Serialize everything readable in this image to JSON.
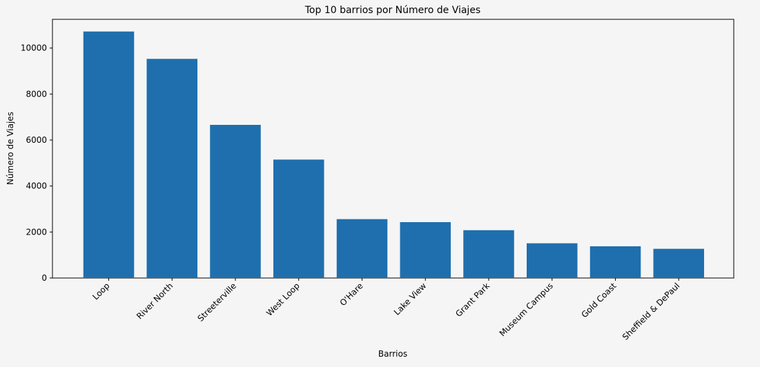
{
  "chart_data": {
    "type": "bar",
    "title": "Top 10 barrios por Número de Viajes",
    "xlabel": "Barrios",
    "ylabel": "Número de Viajes",
    "categories": [
      "Loop",
      "River North",
      "Streeterville",
      "West Loop",
      "O'Hare",
      "Lake View",
      "Grant Park",
      "Museum Campus",
      "Gold Coast",
      "Sheffield & DePaul"
    ],
    "values": [
      10720,
      9530,
      6660,
      5150,
      2560,
      2430,
      2080,
      1510,
      1380,
      1270
    ],
    "ylim": [
      0,
      11250
    ],
    "yticks": [
      0,
      2000,
      4000,
      6000,
      8000,
      10000
    ],
    "ytick_labels": [
      "0",
      "2000",
      "4000",
      "6000",
      "8000",
      "10000"
    ],
    "grid": false,
    "legend": "none",
    "bar_color": "#1f6fae",
    "background_color": "#f5f5f5"
  }
}
